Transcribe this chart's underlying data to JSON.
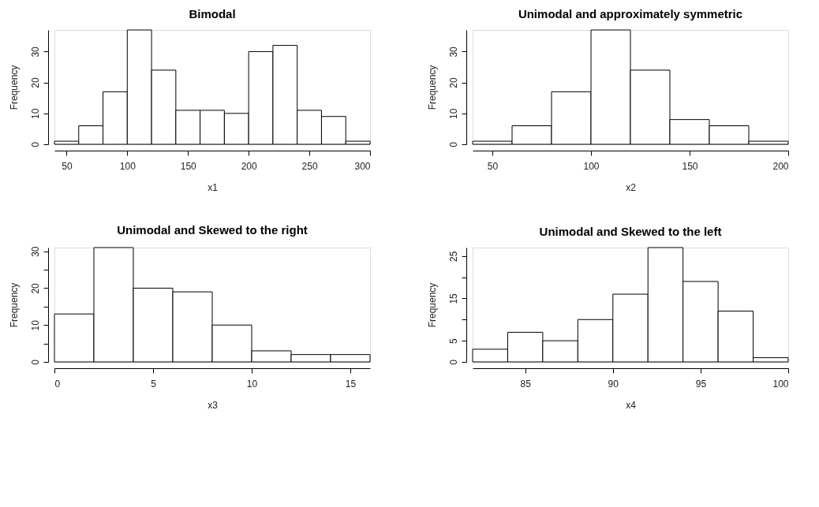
{
  "chart_data": [
    {
      "type": "histogram",
      "title": "Bimodal",
      "xlabel": "x1",
      "ylabel": "Frequency",
      "bins": [
        40,
        60,
        80,
        100,
        120,
        140,
        160,
        180,
        200,
        220,
        240,
        260,
        280,
        300
      ],
      "values": [
        1,
        6,
        17,
        37,
        24,
        11,
        11,
        10,
        30,
        32,
        11,
        9,
        1
      ],
      "color": "#ffffff",
      "xlim": [
        40,
        300
      ],
      "xticks": [
        50,
        100,
        150,
        200,
        250,
        300
      ],
      "ylim": [
        0,
        37
      ],
      "yticks": [
        0,
        10,
        20,
        30
      ],
      "grid": false
    },
    {
      "type": "histogram",
      "title": "Unimodal and approximately symmetric",
      "xlabel": "x2",
      "ylabel": "Frequency",
      "bins": [
        40,
        60,
        80,
        100,
        120,
        140,
        160,
        180,
        200
      ],
      "values": [
        1,
        6,
        17,
        37,
        24,
        8,
        6,
        1
      ],
      "color": "#ffffff",
      "xlim": [
        40,
        200
      ],
      "xticks": [
        50,
        100,
        150,
        200
      ],
      "ylim": [
        0,
        37
      ],
      "yticks": [
        0,
        10,
        20,
        30
      ],
      "grid": false
    },
    {
      "type": "histogram",
      "title": "Unimodal and Skewed to the right",
      "xlabel": "x3",
      "ylabel": "Frequency",
      "bins": [
        0,
        2,
        4,
        6,
        8,
        10,
        12,
        14,
        16
      ],
      "values": [
        13,
        31,
        20,
        19,
        10,
        3,
        2,
        2
      ],
      "color": "#ffffff",
      "xlim": [
        0,
        16
      ],
      "xticks": [
        0,
        5,
        10,
        15
      ],
      "ylim": [
        0,
        31
      ],
      "yticks": [
        0,
        {
          "value": 5,
          "label": null
        },
        10,
        {
          "value": 15,
          "label": null
        },
        20,
        {
          "value": 25,
          "label": null
        },
        30
      ],
      "grid": false
    },
    {
      "type": "histogram",
      "title": "Unimodal and Skewed to the left",
      "xlabel": "x4",
      "ylabel": "Frequency",
      "bins": [
        82,
        84,
        86,
        88,
        90,
        92,
        94,
        96,
        98,
        100
      ],
      "values": [
        3,
        7,
        5,
        10,
        16,
        27,
        19,
        12,
        1
      ],
      "color": "#ffffff",
      "xlim": [
        82,
        100
      ],
      "xticks": [
        85,
        90,
        95,
        100
      ],
      "ylim": [
        0,
        27
      ],
      "yticks": [
        0,
        5,
        {
          "value": 10,
          "label": null
        },
        15,
        {
          "value": 20,
          "label": null
        },
        25
      ],
      "grid": false
    }
  ]
}
